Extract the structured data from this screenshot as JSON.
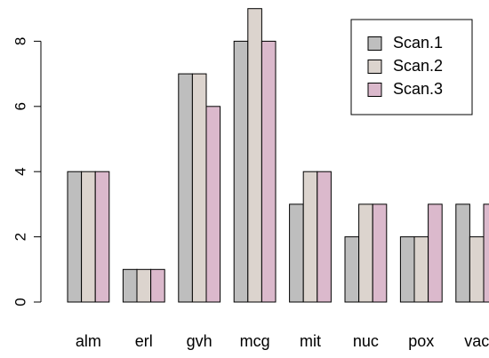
{
  "chart_data": {
    "type": "bar",
    "barmode": "grouped",
    "categories": [
      "alm",
      "erl",
      "gvh",
      "mcg",
      "mit",
      "nuc",
      "pox",
      "vac"
    ],
    "series": [
      {
        "name": "Scan.1",
        "values": [
          4,
          1,
          7,
          8,
          3,
          2,
          2,
          3
        ],
        "color": "#bebebe"
      },
      {
        "name": "Scan.2",
        "values": [
          4,
          1,
          7,
          9,
          4,
          3,
          2,
          2
        ],
        "color": "#dcd4ce"
      },
      {
        "name": "Scan.3",
        "values": [
          4,
          1,
          6,
          8,
          4,
          3,
          3,
          3
        ],
        "color": "#dbb9cc"
      }
    ],
    "title": "",
    "xlabel": "",
    "ylabel": "",
    "ylim": [
      0,
      9
    ],
    "yticks": [
      0,
      2,
      4,
      6,
      8
    ],
    "grid": false,
    "legend_position": "top-right"
  }
}
